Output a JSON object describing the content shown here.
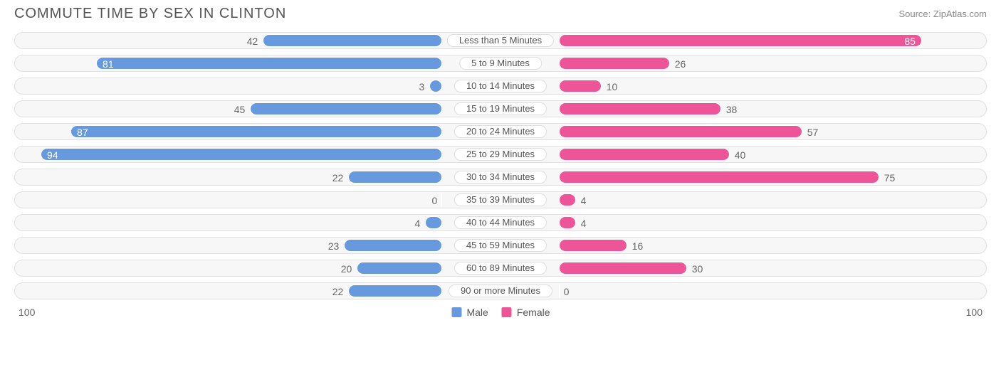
{
  "header": {
    "title": "COMMUTE TIME BY SEX IN CLINTON",
    "source": "Source: ZipAtlas.com"
  },
  "chart": {
    "type": "diverging-bar",
    "max_value": 100,
    "background_color": "#ffffff",
    "row_bg": "#f7f7f7",
    "row_border": "#e0e0e0",
    "label_color": "#666666",
    "title_color": "#555555",
    "series": [
      {
        "key": "male",
        "label": "Male",
        "color": "#6699dd",
        "side": "left"
      },
      {
        "key": "female",
        "label": "Female",
        "color": "#ee5599",
        "side": "right"
      }
    ],
    "categories": [
      {
        "label": "Less than 5 Minutes",
        "male": 42,
        "female": 85
      },
      {
        "label": "5 to 9 Minutes",
        "male": 81,
        "female": 26
      },
      {
        "label": "10 to 14 Minutes",
        "male": 3,
        "female": 10
      },
      {
        "label": "15 to 19 Minutes",
        "male": 45,
        "female": 38
      },
      {
        "label": "20 to 24 Minutes",
        "male": 87,
        "female": 57
      },
      {
        "label": "25 to 29 Minutes",
        "male": 94,
        "female": 40
      },
      {
        "label": "30 to 34 Minutes",
        "male": 22,
        "female": 75
      },
      {
        "label": "35 to 39 Minutes",
        "male": 0,
        "female": 4
      },
      {
        "label": "40 to 44 Minutes",
        "male": 4,
        "female": 4
      },
      {
        "label": "45 to 59 Minutes",
        "male": 23,
        "female": 16
      },
      {
        "label": "60 to 89 Minutes",
        "male": 20,
        "female": 30
      },
      {
        "label": "90 or more Minutes",
        "male": 22,
        "female": 0
      }
    ],
    "axis": {
      "left": "100",
      "right": "100"
    },
    "center_label_offset_pct": 12,
    "inside_threshold": 80
  }
}
